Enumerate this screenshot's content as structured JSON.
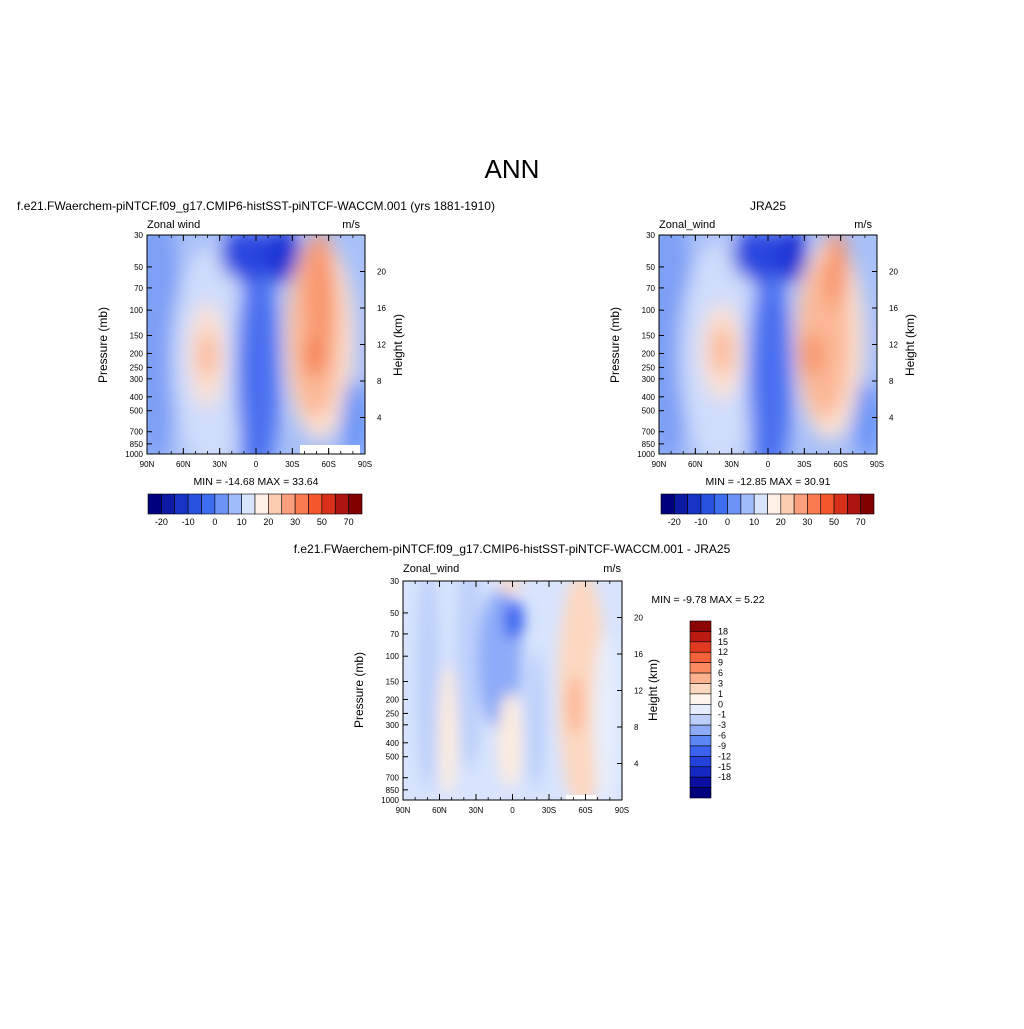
{
  "figure": {
    "title": "ANN",
    "colors": {
      "abs_scale": [
        "#00007f",
        "#0d1aa3",
        "#1a33c7",
        "#2a52e0",
        "#3d6ef0",
        "#6a94f7",
        "#a0bcfa",
        "#d8e4fd",
        "#fef0e6",
        "#fdcdb2",
        "#fc9f7c",
        "#fb7a52",
        "#f5582c",
        "#d8301a",
        "#ad1610",
        "#800000"
      ],
      "diff_scale": [
        "#00007f",
        "#0a0fa0",
        "#1528c2",
        "#2443db",
        "#3a64ef",
        "#5d86f5",
        "#8dabf8",
        "#bdd0fb",
        "#e6eefd",
        "#fef5ec",
        "#fdd8c1",
        "#fcb28e",
        "#fb8a61",
        "#f5613a",
        "#e03a20",
        "#bb1a12",
        "#8c0505"
      ]
    }
  },
  "chart_data": [
    {
      "type": "heatmap",
      "title": "f.e21.FWaerchem-piNTCF.f09_g17.CMIP6-histSST-piNTCF-WACCM.001 (yrs 1881-1910)",
      "left_label": "Zonal wind",
      "right_label": "m/s",
      "ylabel": "Pressure (mb)",
      "y2label": "Height (km)",
      "x_ticks": [
        "90N",
        "60N",
        "30N",
        "0",
        "30S",
        "60S",
        "90S"
      ],
      "y_ticks": [
        "30",
        "50",
        "70",
        "100",
        "150",
        "200",
        "250",
        "300",
        "400",
        "500",
        "700",
        "850",
        "1000"
      ],
      "y2_ticks": [
        "20",
        "16",
        "12",
        "8",
        "4"
      ],
      "stats": "MIN = -14.68  MAX =  33.64",
      "colorbar_labels": [
        "-20",
        "-10",
        "0",
        "10",
        "20",
        "30",
        "50",
        "70"
      ],
      "min": -14.68,
      "max": 33.64
    },
    {
      "type": "heatmap",
      "title": "JRA25",
      "left_label": "Zonal_wind",
      "right_label": "m/s",
      "ylabel": "Pressure (mb)",
      "y2label": "Height (km)",
      "x_ticks": [
        "90N",
        "60N",
        "30N",
        "0",
        "30S",
        "60S",
        "90S"
      ],
      "y_ticks": [
        "30",
        "50",
        "70",
        "100",
        "150",
        "200",
        "250",
        "300",
        "400",
        "500",
        "700",
        "850",
        "1000"
      ],
      "y2_ticks": [
        "20",
        "16",
        "12",
        "8",
        "4"
      ],
      "stats": "MIN = -12.85  MAX =  30.91",
      "colorbar_labels": [
        "-20",
        "-10",
        "0",
        "10",
        "20",
        "30",
        "50",
        "70"
      ],
      "min": -12.85,
      "max": 30.91
    },
    {
      "type": "heatmap",
      "title": "f.e21.FWaerchem-piNTCF.f09_g17.CMIP6-histSST-piNTCF-WACCM.001 - JRA25",
      "left_label": "Zonal_wind",
      "right_label": "m/s",
      "ylabel": "Pressure (mb)",
      "y2label": "Height (km)",
      "x_ticks": [
        "90N",
        "60N",
        "30N",
        "0",
        "30S",
        "60S",
        "90S"
      ],
      "y_ticks": [
        "30",
        "50",
        "70",
        "100",
        "150",
        "200",
        "250",
        "300",
        "400",
        "500",
        "700",
        "850",
        "1000"
      ],
      "y2_ticks": [
        "20",
        "16",
        "12",
        "8",
        "4"
      ],
      "stats": "MIN =  -9.78  MAX =   5.22",
      "colorbar_labels": [
        "18",
        "15",
        "12",
        "9",
        "6",
        "3",
        "1",
        "0",
        "-1",
        "-3",
        "-6",
        "-9",
        "-12",
        "-15",
        "-18"
      ],
      "min": -9.78,
      "max": 5.22
    }
  ]
}
